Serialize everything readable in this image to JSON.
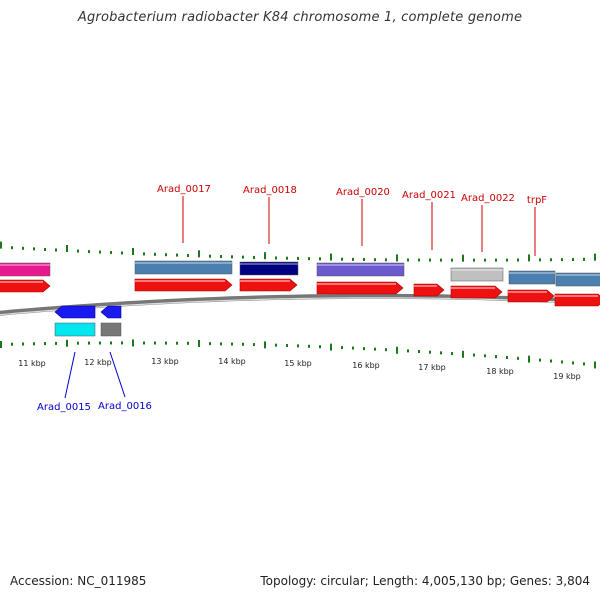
{
  "title": "Agrobacterium radiobacter K84 chromosome 1, complete genome",
  "footer": {
    "accession": "Accession: NC_011985",
    "summary": "Topology: circular; Length: 4,005,130 bp; Genes: 3,804"
  },
  "colors": {
    "forward_label": "#cc0000",
    "reverse_label": "#0000cc",
    "tick": "#1a7a1a",
    "cds_arrow": "#ee1111",
    "backbone": "#888888"
  },
  "scale_labels": [
    "11 kbp",
    "12 kbp",
    "13 kbp",
    "14 kbp",
    "15 kbp",
    "16 kbp",
    "17 kbp",
    "18 kbp",
    "19 kbp"
  ],
  "gene_labels": {
    "forward": [
      "Arad_0017",
      "Arad_0018",
      "Arad_0020",
      "Arad_0021",
      "Arad_0022",
      "trpF"
    ],
    "reverse": [
      "Arad_0015",
      "Arad_0016"
    ]
  }
}
